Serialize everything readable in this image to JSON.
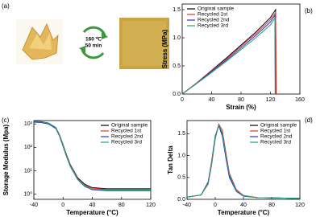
{
  "scheme": {
    "panel_label": "(a)",
    "temperature": "160 ℃",
    "time": "50 min"
  },
  "chart_data": [
    {
      "type": "line",
      "panel_label": "(b)",
      "xlabel": "Strain (%)",
      "ylabel": "Stress (MPa)",
      "xlim": [
        0,
        160
      ],
      "ylim": [
        0,
        1.6
      ],
      "xticks": [
        0,
        40,
        80,
        120,
        160
      ],
      "yticks": [
        {
          "value": 0,
          "label": "0.0"
        },
        0.5,
        {
          "value": 1,
          "label": "1.0"
        },
        1.5
      ],
      "legend": "upper left",
      "series": [
        {
          "name": "Original sample",
          "color": "#000000",
          "x": [
            0,
            20,
            40,
            60,
            80,
            100,
            120,
            127,
            127.5
          ],
          "values": [
            0,
            0.2,
            0.42,
            0.64,
            0.87,
            1.1,
            1.36,
            1.5,
            0
          ]
        },
        {
          "name": "Recycled 1st",
          "color": "#e8332a",
          "x": [
            0,
            20,
            40,
            60,
            80,
            100,
            120,
            127,
            128
          ],
          "values": [
            0,
            0.2,
            0.41,
            0.62,
            0.85,
            1.07,
            1.32,
            1.45,
            0
          ]
        },
        {
          "name": "Recycled 2nd",
          "color": "#2b35c8",
          "x": [
            0,
            20,
            40,
            60,
            80,
            100,
            120,
            126,
            126.5
          ],
          "values": [
            0,
            0.19,
            0.4,
            0.6,
            0.82,
            1.04,
            1.28,
            1.4,
            0
          ]
        },
        {
          "name": "Recycled 3rd",
          "color": "#1fa37a",
          "x": [
            0,
            20,
            40,
            60,
            80,
            100,
            120,
            126,
            126.5
          ],
          "values": [
            0,
            0.19,
            0.38,
            0.58,
            0.79,
            1.0,
            1.23,
            1.35,
            0
          ]
        }
      ]
    },
    {
      "type": "line",
      "panel_label": "(c)",
      "xlabel": "Temperature (°C)",
      "ylabel": "Storage Modulus (Mpa)",
      "log_y": true,
      "xlim": [
        -40,
        120
      ],
      "ylim": [
        0.6,
        1400
      ],
      "xticks": [
        -40,
        0,
        40,
        80,
        120
      ],
      "yticks": [
        {
          "value": 1,
          "label": "10⁰"
        },
        {
          "value": 10,
          "label": "10¹"
        },
        {
          "value": 100,
          "label": "10²"
        },
        {
          "value": 1000,
          "label": "10³"
        }
      ],
      "legend": "upper right",
      "series": [
        {
          "name": "Original sample",
          "color": "#000000",
          "x": [
            -40,
            -30,
            -20,
            -10,
            -5,
            0,
            5,
            10,
            20,
            30,
            40,
            60,
            80,
            100,
            120
          ],
          "values": [
            1300,
            1250,
            1100,
            700,
            350,
            130,
            45,
            18,
            5,
            2.6,
            1.9,
            1.7,
            1.7,
            1.7,
            1.7
          ]
        },
        {
          "name": "Recycled 1st",
          "color": "#e8332a",
          "x": [
            -40,
            -30,
            -20,
            -10,
            -5,
            0,
            5,
            10,
            20,
            30,
            40,
            60,
            80,
            100,
            120
          ],
          "values": [
            1250,
            1200,
            1050,
            680,
            340,
            125,
            42,
            17,
            4.6,
            2.4,
            1.8,
            1.6,
            1.6,
            1.6,
            1.6
          ]
        },
        {
          "name": "Recycled 2nd",
          "color": "#2b35c8",
          "x": [
            -40,
            -30,
            -20,
            -10,
            -5,
            0,
            5,
            10,
            20,
            30,
            40,
            60,
            80,
            100,
            120
          ],
          "values": [
            1200,
            1150,
            1000,
            640,
            310,
            110,
            38,
            15,
            4.2,
            2.1,
            1.55,
            1.4,
            1.4,
            1.4,
            1.4
          ]
        },
        {
          "name": "Recycled 3rd",
          "color": "#1fa37a",
          "x": [
            -40,
            -30,
            -20,
            -10,
            -5,
            0,
            5,
            10,
            20,
            30,
            40,
            60,
            80,
            100,
            120
          ],
          "values": [
            1280,
            1220,
            1080,
            690,
            330,
            120,
            40,
            16,
            4.4,
            2.2,
            1.65,
            1.5,
            1.5,
            1.5,
            1.5
          ]
        }
      ]
    },
    {
      "type": "line",
      "panel_label": "(d)",
      "xlabel": "Temperature (°C)",
      "ylabel": "Tan Delta",
      "xlim": [
        -40,
        120
      ],
      "ylim": [
        0,
        1.8
      ],
      "xticks": [
        -40,
        0,
        40,
        80,
        120
      ],
      "yticks": [
        {
          "value": 0,
          "label": "0.0"
        },
        0.5,
        {
          "value": 1,
          "label": "1.0"
        },
        1.5
      ],
      "legend": "upper right",
      "series": [
        {
          "name": "Original sample",
          "color": "#000000",
          "x": [
            -40,
            -20,
            -10,
            -5,
            0,
            5,
            10,
            15,
            20,
            30,
            40,
            60,
            120
          ],
          "values": [
            0.05,
            0.1,
            0.38,
            0.85,
            1.42,
            1.7,
            1.5,
            1.0,
            0.55,
            0.2,
            0.08,
            0.04,
            0.02
          ]
        },
        {
          "name": "Recycled 1st",
          "color": "#e8332a",
          "x": [
            -40,
            -20,
            -10,
            -5,
            0,
            5,
            10,
            15,
            20,
            30,
            40,
            60,
            120
          ],
          "values": [
            0.05,
            0.1,
            0.35,
            0.8,
            1.38,
            1.72,
            1.58,
            1.08,
            0.6,
            0.22,
            0.09,
            0.04,
            0.02
          ]
        },
        {
          "name": "Recycled 2nd",
          "color": "#2b35c8",
          "x": [
            -40,
            -20,
            -10,
            -5,
            0,
            5,
            10,
            15,
            20,
            30,
            40,
            60,
            120
          ],
          "values": [
            0.05,
            0.1,
            0.4,
            0.88,
            1.45,
            1.68,
            1.45,
            0.95,
            0.5,
            0.18,
            0.07,
            0.04,
            0.02
          ]
        },
        {
          "name": "Recycled 3rd",
          "color": "#1fa37a",
          "x": [
            -40,
            -20,
            -10,
            -5,
            0,
            5,
            10,
            15,
            20,
            30,
            40,
            60,
            120
          ],
          "values": [
            0.05,
            0.1,
            0.37,
            0.84,
            1.4,
            1.69,
            1.52,
            1.02,
            0.56,
            0.2,
            0.08,
            0.04,
            0.02
          ]
        }
      ]
    }
  ]
}
